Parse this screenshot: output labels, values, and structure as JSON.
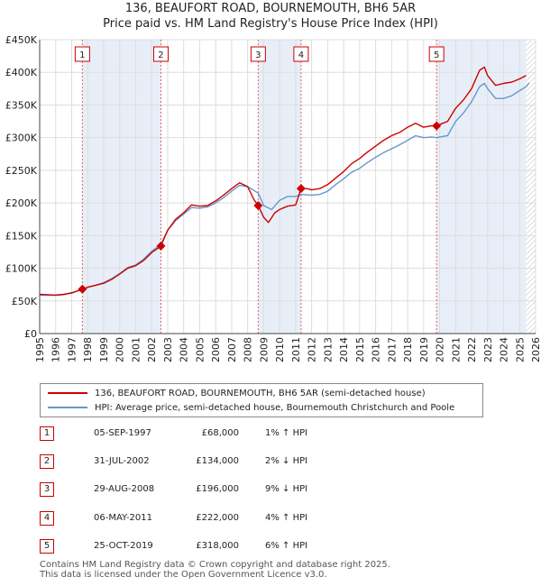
{
  "title": "136, BEAUFORT ROAD, BOURNEMOUTH, BH6 5AR",
  "subtitle": "Price paid vs. HM Land Registry's House Price Index (HPI)",
  "chart_data": {
    "type": "line",
    "title": "136, BEAUFORT ROAD, BOURNEMOUTH, BH6 5AR",
    "subtitle": "Price paid vs. HM Land Registry's House Price Index (HPI)",
    "xlim": [
      1995,
      2026
    ],
    "ylim": [
      0,
      450000
    ],
    "x_ticks": [
      "1995",
      "1996",
      "1997",
      "1998",
      "1999",
      "2000",
      "2001",
      "2002",
      "2003",
      "2004",
      "2005",
      "2006",
      "2007",
      "2008",
      "2009",
      "2010",
      "2011",
      "2012",
      "2013",
      "2014",
      "2015",
      "2016",
      "2017",
      "2018",
      "2019",
      "2020",
      "2021",
      "2022",
      "2023",
      "2024",
      "2025",
      "2026"
    ],
    "y_ticks": [
      {
        "value": 0,
        "label": "£0"
      },
      {
        "value": 50000,
        "label": "£50K"
      },
      {
        "value": 100000,
        "label": "£100K"
      },
      {
        "value": 150000,
        "label": "£150K"
      },
      {
        "value": 200000,
        "label": "£200K"
      },
      {
        "value": 250000,
        "label": "£250K"
      },
      {
        "value": 300000,
        "label": "£300K"
      },
      {
        "value": 350000,
        "label": "£350K"
      },
      {
        "value": 400000,
        "label": "£400K"
      },
      {
        "value": 450000,
        "label": "£450K"
      }
    ],
    "grid": true,
    "shaded_periods": [
      [
        1997.67,
        2002.58
      ],
      [
        2008.66,
        2011.34
      ],
      [
        2019.81,
        2025.4
      ]
    ],
    "hatched_from": 2025.4,
    "series": [
      {
        "name": "136, BEAUFORT ROAD, BOURNEMOUTH, BH6 5AR (semi-detached house)",
        "color": "#cc0000",
        "points": [
          [
            1995.0,
            60000
          ],
          [
            1995.5,
            59500
          ],
          [
            1996.0,
            59000
          ],
          [
            1996.5,
            60000
          ],
          [
            1997.0,
            62000
          ],
          [
            1997.67,
            68000
          ],
          [
            1998.0,
            71000
          ],
          [
            1998.5,
            74000
          ],
          [
            1999.0,
            77000
          ],
          [
            1999.5,
            83000
          ],
          [
            2000.0,
            91000
          ],
          [
            2000.5,
            100000
          ],
          [
            2001.0,
            104000
          ],
          [
            2001.5,
            112000
          ],
          [
            2002.0,
            124000
          ],
          [
            2002.58,
            134000
          ],
          [
            2003.0,
            158000
          ],
          [
            2003.5,
            175000
          ],
          [
            2004.0,
            185000
          ],
          [
            2004.5,
            197000
          ],
          [
            2005.0,
            195000
          ],
          [
            2005.5,
            196000
          ],
          [
            2006.0,
            203000
          ],
          [
            2006.5,
            212000
          ],
          [
            2007.0,
            222000
          ],
          [
            2007.5,
            231000
          ],
          [
            2008.0,
            225000
          ],
          [
            2008.4,
            205000
          ],
          [
            2008.66,
            196000
          ],
          [
            2009.0,
            178000
          ],
          [
            2009.3,
            170000
          ],
          [
            2009.7,
            185000
          ],
          [
            2010.0,
            190000
          ],
          [
            2010.5,
            195000
          ],
          [
            2011.0,
            197000
          ],
          [
            2011.34,
            222000
          ],
          [
            2011.7,
            222000
          ],
          [
            2012.0,
            220000
          ],
          [
            2012.5,
            222000
          ],
          [
            2013.0,
            228000
          ],
          [
            2013.5,
            238000
          ],
          [
            2014.0,
            248000
          ],
          [
            2014.5,
            260000
          ],
          [
            2015.0,
            268000
          ],
          [
            2015.5,
            278000
          ],
          [
            2016.0,
            287000
          ],
          [
            2016.5,
            296000
          ],
          [
            2017.0,
            303000
          ],
          [
            2017.5,
            308000
          ],
          [
            2018.0,
            316000
          ],
          [
            2018.5,
            322000
          ],
          [
            2019.0,
            316000
          ],
          [
            2019.5,
            318000
          ],
          [
            2019.81,
            318000
          ],
          [
            2020.0,
            320000
          ],
          [
            2020.5,
            325000
          ],
          [
            2021.0,
            345000
          ],
          [
            2021.5,
            358000
          ],
          [
            2022.0,
            375000
          ],
          [
            2022.5,
            403000
          ],
          [
            2022.8,
            408000
          ],
          [
            2023.0,
            395000
          ],
          [
            2023.5,
            380000
          ],
          [
            2024.0,
            383000
          ],
          [
            2024.5,
            385000
          ],
          [
            2025.0,
            390000
          ],
          [
            2025.4,
            395000
          ]
        ]
      },
      {
        "name": "HPI: Average price, semi-detached house, Bournemouth Christchurch and Poole",
        "color": "#6699cc",
        "points": [
          [
            1995.0,
            59000
          ],
          [
            1995.5,
            58500
          ],
          [
            1996.0,
            58500
          ],
          [
            1996.5,
            59500
          ],
          [
            1997.0,
            63000
          ],
          [
            1997.67,
            67000
          ],
          [
            1998.0,
            71000
          ],
          [
            1998.5,
            74000
          ],
          [
            1999.0,
            78000
          ],
          [
            1999.5,
            84000
          ],
          [
            2000.0,
            92000
          ],
          [
            2000.5,
            101000
          ],
          [
            2001.0,
            105000
          ],
          [
            2001.5,
            114000
          ],
          [
            2002.0,
            126000
          ],
          [
            2002.58,
            137000
          ],
          [
            2003.0,
            158000
          ],
          [
            2003.5,
            173000
          ],
          [
            2004.0,
            183000
          ],
          [
            2004.5,
            193000
          ],
          [
            2005.0,
            192000
          ],
          [
            2005.5,
            194000
          ],
          [
            2006.0,
            200000
          ],
          [
            2006.5,
            208000
          ],
          [
            2007.0,
            218000
          ],
          [
            2007.5,
            227000
          ],
          [
            2008.0,
            225000
          ],
          [
            2008.66,
            215000
          ],
          [
            2009.0,
            196000
          ],
          [
            2009.5,
            190000
          ],
          [
            2010.0,
            204000
          ],
          [
            2010.5,
            210000
          ],
          [
            2011.0,
            210000
          ],
          [
            2011.34,
            213000
          ],
          [
            2012.0,
            212000
          ],
          [
            2012.5,
            213000
          ],
          [
            2013.0,
            218000
          ],
          [
            2013.5,
            228000
          ],
          [
            2014.0,
            237000
          ],
          [
            2014.5,
            247000
          ],
          [
            2015.0,
            253000
          ],
          [
            2015.5,
            262000
          ],
          [
            2016.0,
            270000
          ],
          [
            2016.5,
            277000
          ],
          [
            2017.0,
            283000
          ],
          [
            2017.5,
            289000
          ],
          [
            2018.0,
            296000
          ],
          [
            2018.5,
            303000
          ],
          [
            2019.0,
            300000
          ],
          [
            2019.5,
            301000
          ],
          [
            2019.81,
            300000
          ],
          [
            2020.0,
            301000
          ],
          [
            2020.5,
            303000
          ],
          [
            2021.0,
            325000
          ],
          [
            2021.5,
            338000
          ],
          [
            2022.0,
            355000
          ],
          [
            2022.5,
            378000
          ],
          [
            2022.8,
            383000
          ],
          [
            2023.0,
            375000
          ],
          [
            2023.5,
            360000
          ],
          [
            2024.0,
            360000
          ],
          [
            2024.5,
            364000
          ],
          [
            2025.0,
            372000
          ],
          [
            2025.4,
            378000
          ],
          [
            2025.6,
            384000
          ]
        ]
      }
    ],
    "sales": [
      {
        "label": "1",
        "x": 1997.67,
        "y": 68000
      },
      {
        "label": "2",
        "x": 2002.58,
        "y": 134000
      },
      {
        "label": "3",
        "x": 2008.66,
        "y": 196000
      },
      {
        "label": "4",
        "x": 2011.34,
        "y": 222000
      },
      {
        "label": "5",
        "x": 2019.81,
        "y": 318000
      }
    ]
  },
  "legend": {
    "red_label": "136, BEAUFORT ROAD, BOURNEMOUTH, BH6 5AR (semi-detached house)",
    "blue_label": "HPI: Average price, semi-detached house, Bournemouth Christchurch and Poole",
    "red_color": "#cc0000",
    "blue_color": "#6699cc"
  },
  "transactions": [
    {
      "num": "1",
      "date": "05-SEP-1997",
      "price": "£68,000",
      "hpi": "1% ↑ HPI"
    },
    {
      "num": "2",
      "date": "31-JUL-2002",
      "price": "£134,000",
      "hpi": "2% ↓ HPI"
    },
    {
      "num": "3",
      "date": "29-AUG-2008",
      "price": "£196,000",
      "hpi": "9% ↓ HPI"
    },
    {
      "num": "4",
      "date": "06-MAY-2011",
      "price": "£222,000",
      "hpi": "4% ↑ HPI"
    },
    {
      "num": "5",
      "date": "25-OCT-2019",
      "price": "£318,000",
      "hpi": "6% ↑ HPI"
    }
  ],
  "footer": {
    "line1": "Contains HM Land Registry data © Crown copyright and database right 2025.",
    "line2": "This data is licensed under the Open Government Licence v3.0."
  }
}
